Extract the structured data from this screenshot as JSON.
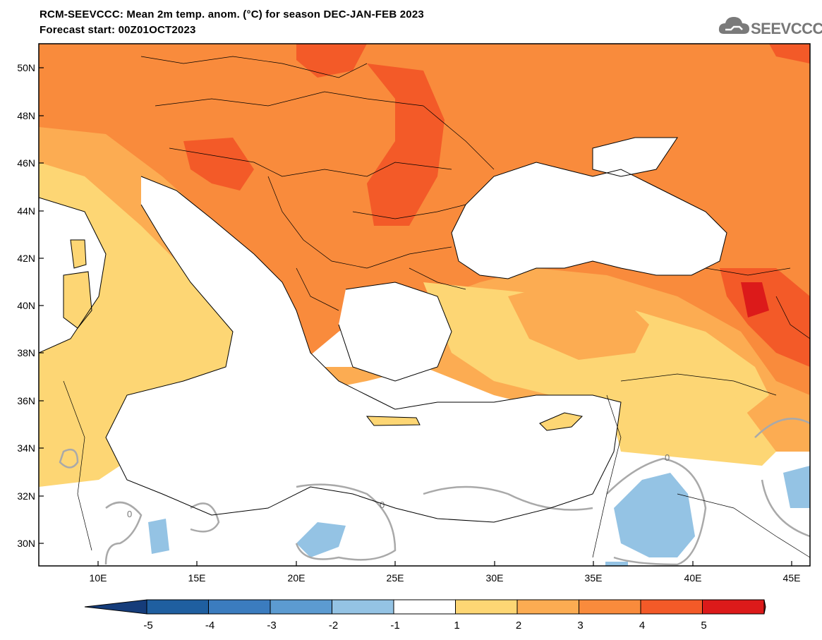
{
  "title": {
    "line1": "RCM-SEEVCCC: Mean 2m temp. anom. (°C) for season DEC-JAN-FEB 2023",
    "line2": "Forecast start: 00Z01OCT2023"
  },
  "logo": {
    "text": "SEEVCCC",
    "icon": "cloud-icon"
  },
  "map": {
    "lat_labels": [
      "50N",
      "48N",
      "46N",
      "44N",
      "42N",
      "40N",
      "38N",
      "36N",
      "34N",
      "32N",
      "30N"
    ],
    "lon_labels": [
      "10E",
      "15E",
      "20E",
      "25E",
      "30E",
      "35E",
      "40E",
      "45E"
    ],
    "contour_labels": [
      "0",
      "0",
      "0"
    ]
  },
  "colorbar": {
    "tick_labels": [
      "-5",
      "-4",
      "-3",
      "-2",
      "-1",
      "1",
      "2",
      "3",
      "4",
      "5"
    ],
    "colors": [
      "#1f5fa0",
      "#3b7cbf",
      "#5c9bd1",
      "#94c3e4",
      "#ffffff",
      "#fdd674",
      "#fcac52",
      "#f98b3c",
      "#f35a28",
      "#dc1a1a"
    ],
    "under_color": "#153c7a",
    "over_color": "#c21313"
  },
  "colors": {
    "sea": "#ffffff",
    "coast": "#000000",
    "contour": "#a9a9a9"
  }
}
